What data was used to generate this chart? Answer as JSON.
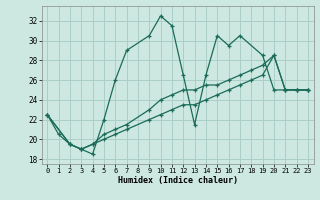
{
  "xlabel": "Humidex (Indice chaleur)",
  "background_color": "#cde8e0",
  "grid_color": "#aacfc8",
  "line_color": "#1a6b5a",
  "xlim": [
    -0.5,
    23.5
  ],
  "ylim": [
    17.5,
    33.5
  ],
  "yticks": [
    18,
    20,
    22,
    24,
    26,
    28,
    30,
    32
  ],
  "xticks": [
    0,
    1,
    2,
    3,
    4,
    5,
    6,
    7,
    8,
    9,
    10,
    11,
    12,
    13,
    14,
    15,
    16,
    17,
    18,
    19,
    20,
    21,
    22,
    23
  ],
  "series": [
    {
      "x": [
        0,
        1,
        2,
        3,
        4,
        5,
        6,
        7,
        9,
        10,
        11,
        12,
        13,
        14,
        15,
        16,
        17,
        19,
        20,
        21,
        22,
        23
      ],
      "y": [
        22.5,
        20.5,
        19.5,
        19.0,
        18.5,
        22.0,
        26.0,
        29.0,
        30.5,
        32.5,
        31.5,
        26.5,
        21.5,
        26.5,
        30.5,
        29.5,
        30.5,
        28.5,
        25.0,
        25.0,
        25.0,
        25.0
      ]
    },
    {
      "x": [
        0,
        2,
        3,
        4,
        5,
        6,
        7,
        9,
        10,
        11,
        12,
        13,
        14,
        15,
        16,
        17,
        18,
        19,
        20,
        21,
        22,
        23
      ],
      "y": [
        22.5,
        19.5,
        19.0,
        19.5,
        20.5,
        21.0,
        21.5,
        23.0,
        24.0,
        24.5,
        25.0,
        25.0,
        25.5,
        25.5,
        26.0,
        26.5,
        27.0,
        27.5,
        28.5,
        25.0,
        25.0,
        25.0
      ]
    },
    {
      "x": [
        0,
        2,
        3,
        4,
        5,
        6,
        7,
        9,
        10,
        11,
        12,
        13,
        14,
        15,
        16,
        17,
        18,
        19,
        20,
        21,
        22,
        23
      ],
      "y": [
        22.5,
        19.5,
        19.0,
        19.5,
        20.0,
        20.5,
        21.0,
        22.0,
        22.5,
        23.0,
        23.5,
        23.5,
        24.0,
        24.5,
        25.0,
        25.5,
        26.0,
        26.5,
        28.5,
        25.0,
        25.0,
        25.0
      ]
    }
  ]
}
